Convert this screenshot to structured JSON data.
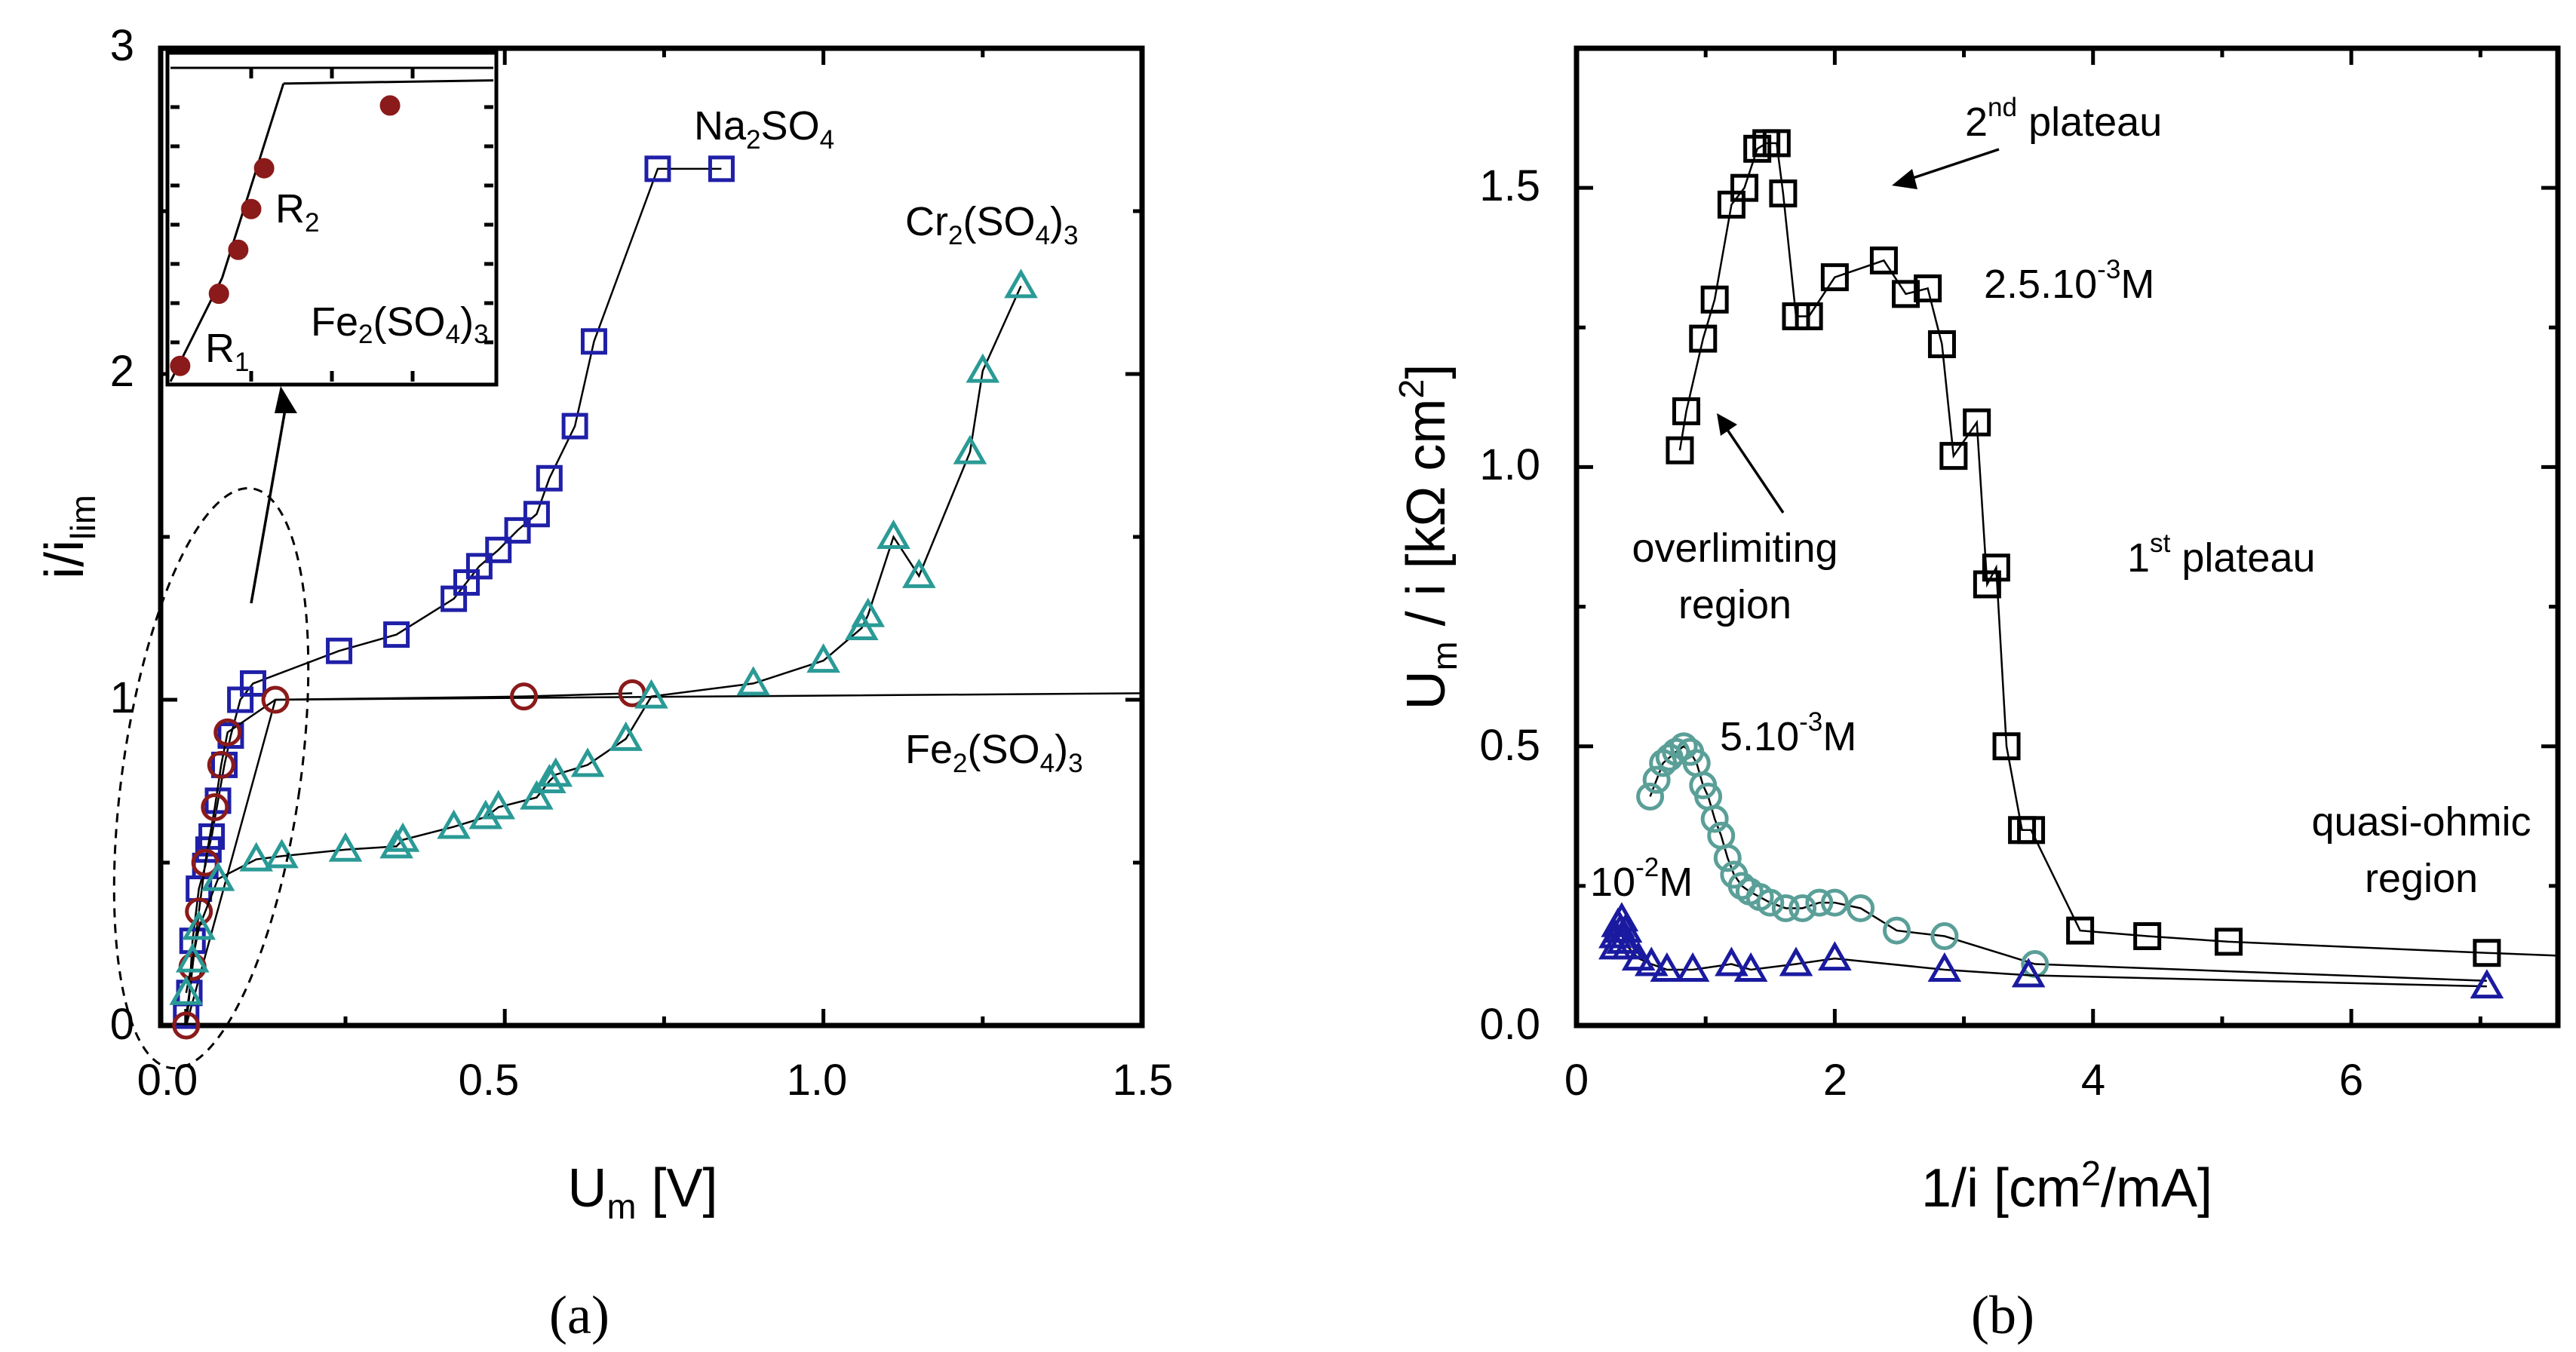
{
  "colors": {
    "na2so4": "#1f1fa8",
    "fe2so4": "#8b1a1a",
    "cr2so4": "#2a9a96",
    "black": "#000000",
    "teal_circle": "#5a9f98",
    "navy_tri": "#1a1aa0"
  },
  "panel_a": {
    "label": "(a)",
    "ylabel_base": "i/i",
    "ylabel_sub": "lim",
    "xlabel_base": "U",
    "xlabel_sub": "m",
    "xlabel_unit": " [V]",
    "xtick_labels": [
      "0.0",
      "0.5",
      "1.0",
      "1.5"
    ],
    "ytick_labels": [
      "0",
      "1",
      "2",
      "3"
    ],
    "series_labels": {
      "na": {
        "p1": "Na",
        "s1": "2",
        "p2": "SO",
        "s2": "4"
      },
      "cr": {
        "p1": "Cr",
        "s1": "2",
        "p2": "(SO",
        "s2": "4",
        "p3": ")",
        "s3": "3"
      },
      "fe": {
        "p1": "Fe",
        "s1": "2",
        "p2": "(SO",
        "s2": "4",
        "p3": ")",
        "s3": "3"
      }
    },
    "inset": {
      "label_r1_base": "R",
      "label_r1_sub": "1",
      "label_r2_base": "R",
      "label_r2_sub": "2",
      "label_fe": {
        "p1": "Fe",
        "s1": "2",
        "p2": "(SO",
        "s2": "4",
        "p3": ")",
        "s3": "3"
      }
    }
  },
  "panel_b": {
    "label": "(b)",
    "ylabel_base": "U",
    "ylabel_sub": "m",
    "ylabel_rest": " / i [kΩ cm",
    "ylabel_sup": "2",
    "ylabel_end": "]",
    "xlabel_base": "1/i [cm",
    "xlabel_sup": "2",
    "xlabel_end": "/mA]",
    "xtick_labels": [
      "0",
      "2",
      "4",
      "6"
    ],
    "ytick_labels": [
      "0.0",
      "0.5",
      "1.0",
      "1.5"
    ],
    "annotations": {
      "plateau2_num": "2",
      "plateau2_sup": "nd",
      "plateau2_text": " plateau",
      "conc1_pre": "2.5.10",
      "conc1_sup": "-3",
      "conc1_post": "M",
      "overlimiting_1": "overlimiting",
      "overlimiting_2": "region",
      "plateau1_num": "1",
      "plateau1_sup": "st",
      "plateau1_text": " plateau",
      "conc2_pre": "5.10",
      "conc2_sup": "-3",
      "conc2_post": "M",
      "conc3_pre": "10",
      "conc3_sup": "-2",
      "conc3_post": "M",
      "quasi_1": "quasi-ohmic",
      "quasi_2": "region"
    }
  },
  "chart_data": [
    {
      "type": "scatter",
      "panel": "(a)",
      "xlabel": "U_m [V]",
      "ylabel": "i/i_lim",
      "xlim": [
        -0.04,
        1.5
      ],
      "ylim": [
        0,
        3
      ],
      "xticks": [
        0.0,
        0.5,
        1.0,
        1.5
      ],
      "yticks": [
        0,
        1,
        2,
        3
      ],
      "series": [
        {
          "name": "Na2SO4",
          "marker": "square",
          "color": "#1f1fa8",
          "x": [
            0.0,
            0.005,
            0.01,
            0.02,
            0.03,
            0.035,
            0.04,
            0.05,
            0.06,
            0.07,
            0.085,
            0.105,
            0.24,
            0.33,
            0.42,
            0.44,
            0.46,
            0.49,
            0.52,
            0.55,
            0.57,
            0.61,
            0.64,
            0.74,
            0.84
          ],
          "y": [
            0.03,
            0.1,
            0.26,
            0.42,
            0.49,
            0.54,
            0.58,
            0.69,
            0.8,
            0.89,
            1.0,
            1.05,
            1.15,
            1.2,
            1.31,
            1.36,
            1.41,
            1.46,
            1.52,
            1.57,
            1.68,
            1.84,
            2.1,
            2.63,
            2.63
          ]
        },
        {
          "name": "Fe2(SO4)3",
          "marker": "circle",
          "color": "#8b1a1a",
          "x": [
            0.0,
            0.01,
            0.02,
            0.03,
            0.045,
            0.055,
            0.065,
            0.14,
            0.53,
            0.7
          ],
          "y": [
            0.0,
            0.18,
            0.35,
            0.5,
            0.67,
            0.8,
            0.9,
            1.0,
            1.01,
            1.02
          ]
        },
        {
          "name": "Fe2(SO4)3 fit",
          "marker": "none",
          "color": "#000000",
          "x": [
            0.0,
            0.14,
            1.5
          ],
          "y": [
            0.0,
            1.0,
            1.02
          ]
        },
        {
          "name": "Cr2(SO4)3",
          "marker": "triangle",
          "color": "#2a9a96",
          "x": [
            0.0,
            0.01,
            0.02,
            0.05,
            0.11,
            0.15,
            0.25,
            0.33,
            0.34,
            0.42,
            0.47,
            0.49,
            0.55,
            0.57,
            0.58,
            0.63,
            0.69,
            0.73,
            0.89,
            1.0,
            1.06,
            1.07,
            1.11,
            1.15,
            1.23,
            1.25,
            1.31
          ],
          "y": [
            0.1,
            0.2,
            0.3,
            0.45,
            0.51,
            0.52,
            0.54,
            0.55,
            0.57,
            0.61,
            0.64,
            0.67,
            0.7,
            0.75,
            0.77,
            0.8,
            0.88,
            1.01,
            1.05,
            1.12,
            1.22,
            1.26,
            1.5,
            1.38,
            1.76,
            2.01,
            2.27
          ]
        }
      ],
      "annotations": [
        "Na2SO4",
        "Cr2(SO4)3",
        "Fe2(SO4)3"
      ],
      "inset": {
        "title": "Fe2(SO4)3",
        "points_normalized_x": [
          0.03,
          0.15,
          0.21,
          0.25,
          0.29,
          0.68
        ],
        "points_normalized_y": [
          0.05,
          0.28,
          0.42,
          0.55,
          0.68,
          0.88
        ],
        "segments": [
          "R1",
          "R2"
        ]
      }
    },
    {
      "type": "scatter",
      "panel": "(b)",
      "xlabel": "1/i [cm2/mA]",
      "ylabel": "U_m / i [kΩ cm2]",
      "xlim": [
        0,
        7.6
      ],
      "ylim": [
        0,
        1.75
      ],
      "xticks": [
        0,
        2,
        4,
        6
      ],
      "yticks": [
        0.0,
        0.5,
        1.0,
        1.5
      ],
      "series": [
        {
          "name": "2.5.10-3M",
          "marker": "square",
          "color": "#000000",
          "x": [
            0.8,
            0.85,
            0.98,
            1.07,
            1.2,
            1.3,
            1.4,
            1.47,
            1.55,
            1.6,
            1.7,
            1.8,
            2.0,
            2.38,
            2.55,
            2.72,
            2.83,
            2.92,
            3.1,
            3.18,
            3.25,
            3.33,
            3.45,
            3.52,
            3.9,
            4.42,
            5.05,
            7.05
          ],
          "y": [
            1.03,
            1.1,
            1.23,
            1.3,
            1.47,
            1.5,
            1.57,
            1.58,
            1.58,
            1.49,
            1.27,
            1.27,
            1.34,
            1.37,
            1.31,
            1.32,
            1.22,
            1.02,
            1.08,
            0.79,
            0.82,
            0.5,
            0.35,
            0.35,
            0.17,
            0.16,
            0.15,
            0.13
          ]
        },
        {
          "name": "5.10-3M",
          "marker": "circle",
          "color": "#5a9f98",
          "x": [
            0.57,
            0.62,
            0.67,
            0.72,
            0.77,
            0.83,
            0.88,
            0.93,
            0.98,
            1.02,
            1.07,
            1.12,
            1.17,
            1.22,
            1.28,
            1.34,
            1.42,
            1.5,
            1.62,
            1.75,
            1.88,
            2.0,
            2.2,
            2.48,
            2.85,
            3.55
          ],
          "y": [
            0.41,
            0.44,
            0.47,
            0.48,
            0.49,
            0.5,
            0.49,
            0.47,
            0.43,
            0.41,
            0.37,
            0.34,
            0.3,
            0.27,
            0.25,
            0.24,
            0.23,
            0.22,
            0.21,
            0.21,
            0.22,
            0.22,
            0.21,
            0.17,
            0.16,
            0.11
          ]
        },
        {
          "name": "10-2M",
          "marker": "triangle",
          "color": "#1a1aa0",
          "x": [
            0.3,
            0.3,
            0.32,
            0.34,
            0.35,
            0.36,
            0.38,
            0.4,
            0.48,
            0.58,
            0.7,
            0.9,
            1.2,
            1.35,
            1.7,
            2.0,
            2.85,
            3.5,
            7.05
          ],
          "y": [
            0.14,
            0.16,
            0.18,
            0.17,
            0.19,
            0.15,
            0.17,
            0.14,
            0.12,
            0.11,
            0.1,
            0.1,
            0.11,
            0.1,
            0.11,
            0.12,
            0.1,
            0.09,
            0.07
          ]
        }
      ],
      "annotations": [
        "2nd plateau",
        "2.5.10-3M",
        "overlimiting region",
        "1st plateau",
        "5.10-3M",
        "10-2M",
        "quasi-ohmic region"
      ]
    }
  ]
}
